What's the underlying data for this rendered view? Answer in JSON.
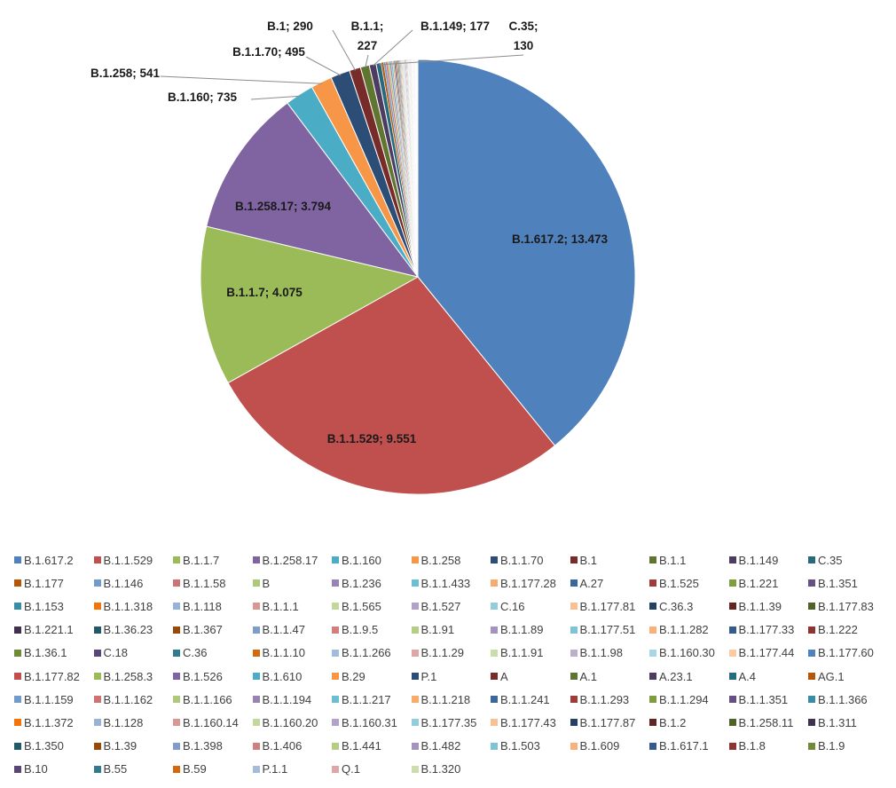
{
  "chart_data": {
    "type": "pie",
    "title": "",
    "legend_position": "bottom",
    "labeled_slices": [
      {
        "name": "B.1.617.2",
        "label": "B.1.617.2; 13.473"
      },
      {
        "name": "B.1.1.529",
        "label": "B.1.1.529; 9.551"
      },
      {
        "name": "B.1.1.7",
        "label": "B.1.1.7; 4.075"
      },
      {
        "name": "B.1.258.17",
        "label": "B.1.258.17; 3.794"
      },
      {
        "name": "B.1.160",
        "label": "B.1.160; 735"
      },
      {
        "name": "B.1.258",
        "label": "B.1.258; 541"
      },
      {
        "name": "B.1.1.70",
        "label": "B.1.1.70; 495"
      },
      {
        "name": "B.1",
        "label": "B.1; 290"
      },
      {
        "name": "B.1.1",
        "label": "B.1.1;\n227"
      },
      {
        "name": "B.1.149",
        "label": "B.1.149; 177"
      },
      {
        "name": "C.35",
        "label": "C.35;\n130"
      }
    ],
    "series": [
      {
        "name": "B.1.617.2",
        "value": 13473,
        "color": "#4F81BD"
      },
      {
        "name": "B.1.1.529",
        "value": 9551,
        "color": "#C0504D"
      },
      {
        "name": "B.1.1.7",
        "value": 4075,
        "color": "#9BBB59"
      },
      {
        "name": "B.1.258.17",
        "value": 3794,
        "color": "#8064A2"
      },
      {
        "name": "B.1.160",
        "value": 735,
        "color": "#4BACC6"
      },
      {
        "name": "B.1.258",
        "value": 541,
        "color": "#F79646"
      },
      {
        "name": "B.1.1.70",
        "value": 495,
        "color": "#2C4D75"
      },
      {
        "name": "B.1",
        "value": 290,
        "color": "#772C2A"
      },
      {
        "name": "B.1.1",
        "value": 227,
        "color": "#5F7530"
      },
      {
        "name": "B.1.149",
        "value": 177,
        "color": "#4D3B62"
      },
      {
        "name": "C.35",
        "value": 130,
        "color": "#276A7C"
      },
      {
        "name": "B.1.177",
        "value": 60,
        "color": "#B65708"
      },
      {
        "name": "B.1.146",
        "value": 55,
        "color": "#729ACA"
      },
      {
        "name": "B.1.1.58",
        "value": 50,
        "color": "#CD7371"
      },
      {
        "name": "B",
        "value": 46,
        "color": "#AFC97A"
      },
      {
        "name": "B.1.236",
        "value": 42,
        "color": "#9983B5"
      },
      {
        "name": "B.1.1.433",
        "value": 38,
        "color": "#6FBDD1"
      },
      {
        "name": "B.1.177.28",
        "value": 35,
        "color": "#F9AB6B"
      },
      {
        "name": "A.27",
        "value": 32,
        "color": "#3A679C"
      },
      {
        "name": "B.1.525",
        "value": 30,
        "color": "#9F3B38"
      },
      {
        "name": "B.1.221",
        "value": 28,
        "color": "#7E9C40"
      },
      {
        "name": "B.1.351",
        "value": 26,
        "color": "#664F83"
      },
      {
        "name": "B.1.153",
        "value": 24,
        "color": "#358EA6"
      },
      {
        "name": "B.1.1.318",
        "value": 22,
        "color": "#F3740B"
      },
      {
        "name": "B.1.118",
        "value": 20,
        "color": "#95B3D7"
      },
      {
        "name": "B.1.1.1",
        "value": 19,
        "color": "#D99694"
      },
      {
        "name": "B.1.565",
        "value": 18,
        "color": "#C3D69B"
      },
      {
        "name": "B.1.527",
        "value": 17,
        "color": "#B2A2C7"
      },
      {
        "name": "C.16",
        "value": 16,
        "color": "#93CDDD"
      },
      {
        "name": "B.1.177.81",
        "value": 15,
        "color": "#FAC090"
      },
      {
        "name": "C.36.3",
        "value": 14,
        "color": "#254061"
      },
      {
        "name": "B.1.1.39",
        "value": 13,
        "color": "#632523"
      },
      {
        "name": "B.1.177.83",
        "value": 12,
        "color": "#4F6228"
      },
      {
        "name": "B.1.221.1",
        "value": 12,
        "color": "#403151"
      },
      {
        "name": "B.1.36.23",
        "value": 11,
        "color": "#215968"
      },
      {
        "name": "B.1.367",
        "value": 11,
        "color": "#984807"
      },
      {
        "name": "B.1.1.47",
        "value": 10,
        "color": "#7F9DC9"
      },
      {
        "name": "B.1.9.5",
        "value": 10,
        "color": "#CF7F7D"
      },
      {
        "name": "B.1.91",
        "value": 10,
        "color": "#B4CE86"
      },
      {
        "name": "B.1.1.89",
        "value": 9,
        "color": "#A593BF"
      },
      {
        "name": "B.1.177.51",
        "value": 9,
        "color": "#7DC4D6"
      },
      {
        "name": "B.1.1.282",
        "value": 9,
        "color": "#F9B07A"
      },
      {
        "name": "B.1.177.33",
        "value": 8,
        "color": "#335B8C"
      },
      {
        "name": "B.1.222",
        "value": 8,
        "color": "#8C3431"
      },
      {
        "name": "B.1.36.1",
        "value": 8,
        "color": "#6F8A39"
      },
      {
        "name": "C.18",
        "value": 7,
        "color": "#5A4675"
      },
      {
        "name": "C.36",
        "value": 7,
        "color": "#2F7C91"
      },
      {
        "name": "B.1.1.10",
        "value": 7,
        "color": "#D4680A"
      },
      {
        "name": "B.1.1.266",
        "value": 7,
        "color": "#A3BCDB"
      },
      {
        "name": "B.1.1.29",
        "value": 6,
        "color": "#DEA7A5"
      },
      {
        "name": "B.1.1.91",
        "value": 6,
        "color": "#CCDCAB"
      },
      {
        "name": "B.1.1.98",
        "value": 6,
        "color": "#BDB0CE"
      },
      {
        "name": "B.1.160.30",
        "value": 6,
        "color": "#A8D7E5"
      },
      {
        "name": "B.1.177.44",
        "value": 6,
        "color": "#FBCBA3"
      },
      {
        "name": "B.1.177.60",
        "value": 5,
        "color": "#4F81BD"
      },
      {
        "name": "B.1.177.82",
        "value": 5,
        "color": "#C0504D"
      },
      {
        "name": "B.1.258.3",
        "value": 5,
        "color": "#9BBB59"
      },
      {
        "name": "B.1.526",
        "value": 5,
        "color": "#8064A2"
      },
      {
        "name": "B.1.610",
        "value": 5,
        "color": "#4BACC6"
      },
      {
        "name": "B.29",
        "value": 5,
        "color": "#F79646"
      },
      {
        "name": "P.1",
        "value": 4,
        "color": "#2C4D75"
      },
      {
        "name": "A",
        "value": 4,
        "color": "#772C2A"
      },
      {
        "name": "A.1",
        "value": 4,
        "color": "#5F7530"
      },
      {
        "name": "A.23.1",
        "value": 4,
        "color": "#4D3B62"
      },
      {
        "name": "A.4",
        "value": 4,
        "color": "#276A7C"
      },
      {
        "name": "AG.1",
        "value": 4,
        "color": "#B65708"
      },
      {
        "name": "B.1.1.159",
        "value": 3,
        "color": "#729ACA"
      },
      {
        "name": "B.1.1.162",
        "value": 3,
        "color": "#CD7371"
      },
      {
        "name": "B.1.1.166",
        "value": 3,
        "color": "#AFC97A"
      },
      {
        "name": "B.1.1.194",
        "value": 3,
        "color": "#9983B5"
      },
      {
        "name": "B.1.1.217",
        "value": 3,
        "color": "#6FBDD1"
      },
      {
        "name": "B.1.1.218",
        "value": 3,
        "color": "#F9AB6B"
      },
      {
        "name": "B.1.1.241",
        "value": 3,
        "color": "#3A679C"
      },
      {
        "name": "B.1.1.293",
        "value": 3,
        "color": "#9F3B38"
      },
      {
        "name": "B.1.1.294",
        "value": 3,
        "color": "#7E9C40"
      },
      {
        "name": "B.1.1.351",
        "value": 3,
        "color": "#664F83"
      },
      {
        "name": "B.1.1.366",
        "value": 3,
        "color": "#358EA6"
      },
      {
        "name": "B.1.1.372",
        "value": 2,
        "color": "#F3740B"
      },
      {
        "name": "B.1.128",
        "value": 2,
        "color": "#95B3D7"
      },
      {
        "name": "B.1.160.14",
        "value": 2,
        "color": "#D99694"
      },
      {
        "name": "B.1.160.20",
        "value": 2,
        "color": "#C3D69B"
      },
      {
        "name": "B.1.160.31",
        "value": 2,
        "color": "#B2A2C7"
      },
      {
        "name": "B.1.177.35",
        "value": 2,
        "color": "#93CDDD"
      },
      {
        "name": "B.1.177.43",
        "value": 2,
        "color": "#FAC090"
      },
      {
        "name": "B.1.177.87",
        "value": 2,
        "color": "#254061"
      },
      {
        "name": "B.1.2",
        "value": 2,
        "color": "#632523"
      },
      {
        "name": "B.1.258.11",
        "value": 2,
        "color": "#4F6228"
      },
      {
        "name": "B.1.311",
        "value": 2,
        "color": "#403151"
      },
      {
        "name": "B.1.350",
        "value": 1,
        "color": "#215968"
      },
      {
        "name": "B.1.39",
        "value": 1,
        "color": "#984807"
      },
      {
        "name": "B.1.398",
        "value": 1,
        "color": "#7F9DC9"
      },
      {
        "name": "B.1.406",
        "value": 1,
        "color": "#CF7F7D"
      },
      {
        "name": "B.1.441",
        "value": 1,
        "color": "#B4CE86"
      },
      {
        "name": "B.1.482",
        "value": 1,
        "color": "#A593BF"
      },
      {
        "name": "B.1.503",
        "value": 1,
        "color": "#7DC4D6"
      },
      {
        "name": "B.1.609",
        "value": 1,
        "color": "#F9B07A"
      },
      {
        "name": "B.1.617.1",
        "value": 1,
        "color": "#335B8C"
      },
      {
        "name": "B.1.8",
        "value": 1,
        "color": "#8C3431"
      },
      {
        "name": "B.1.9",
        "value": 1,
        "color": "#6F8A39"
      },
      {
        "name": "B.10",
        "value": 1,
        "color": "#5A4675"
      },
      {
        "name": "B.55",
        "value": 1,
        "color": "#2F7C91"
      },
      {
        "name": "B.59",
        "value": 1,
        "color": "#D4680A"
      },
      {
        "name": "P.1.1",
        "value": 1,
        "color": "#A3BCDB"
      },
      {
        "name": "Q.1",
        "value": 1,
        "color": "#DEA7A5"
      },
      {
        "name": "B.1.320",
        "value": 1,
        "color": "#CCDCAB"
      }
    ]
  }
}
